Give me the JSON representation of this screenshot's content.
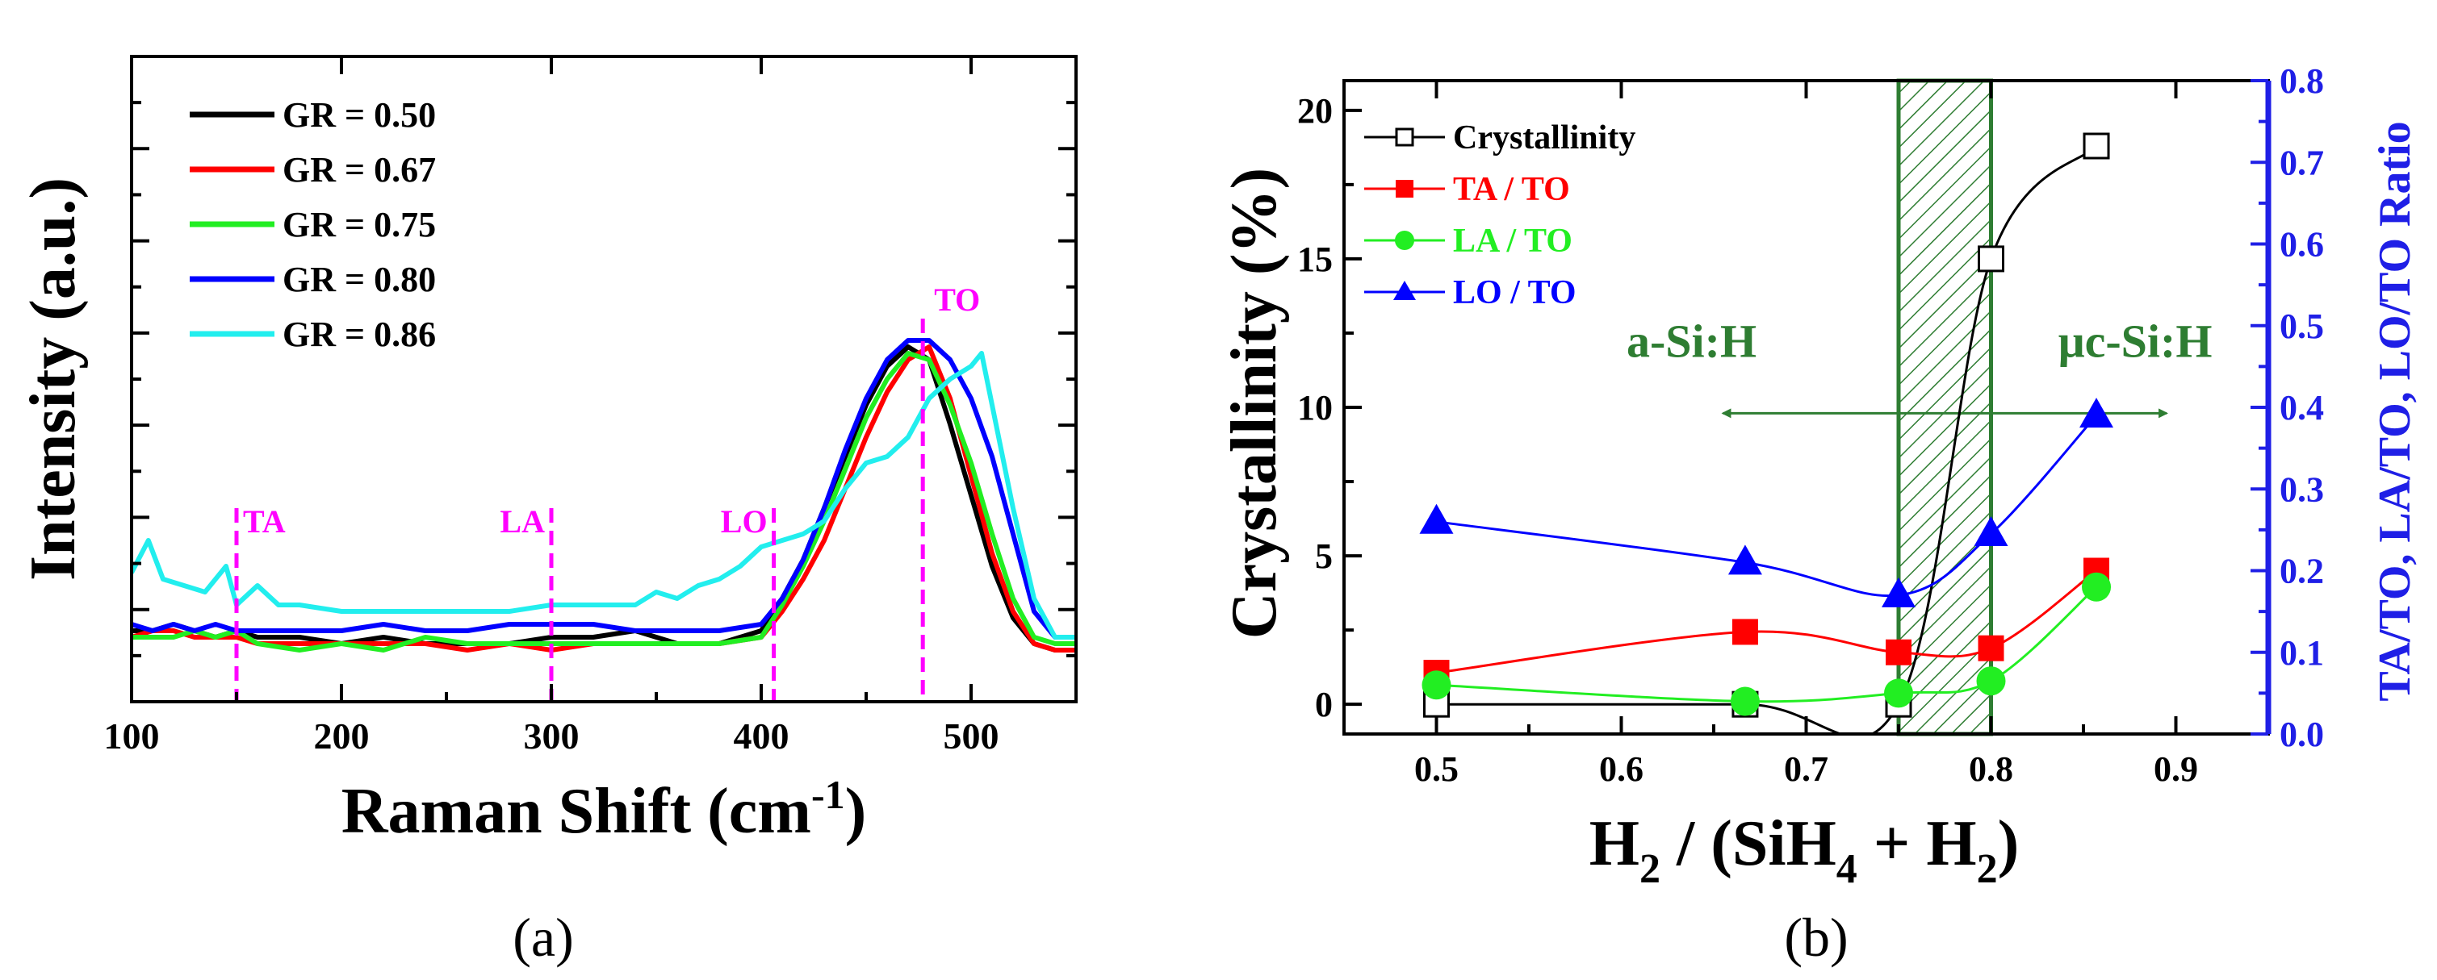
{
  "colors": {
    "black": "#000000",
    "red": "#ff0000",
    "green": "#22ee22",
    "blue": "#0000ff",
    "cyan": "#22eeee",
    "magenta": "#ff00ff",
    "hatch": "#2e7d32",
    "annotation_green": "#2e7d32",
    "right_axis_blue": "#1f1fe6"
  },
  "captions": {
    "a": "(a)",
    "b": "(b)"
  },
  "chart_data": [
    {
      "id": "a",
      "type": "line",
      "xlabel": "Raman Shift (cm",
      "xlabel_sup": "-1",
      "xlabel_end": ")",
      "ylabel": "Intensity (a.u.)",
      "xlim": [
        100,
        550
      ],
      "x_ticks": [
        100,
        200,
        300,
        400,
        500
      ],
      "ylim": [
        0,
        100
      ],
      "y_ticks_shown": false,
      "legend": {
        "placement": "top-left",
        "entries": [
          "GR = 0.50",
          "GR = 0.67",
          "GR = 0.75",
          "GR = 0.80",
          "GR = 0.86"
        ]
      },
      "series": [
        {
          "name": "GR = 0.50",
          "color": "#000000",
          "points": [
            [
              100,
              11
            ],
            [
              110,
              11
            ],
            [
              120,
              12
            ],
            [
              130,
              11
            ],
            [
              140,
              10
            ],
            [
              150,
              11
            ],
            [
              160,
              10
            ],
            [
              180,
              10
            ],
            [
              200,
              9
            ],
            [
              220,
              10
            ],
            [
              240,
              9
            ],
            [
              260,
              9
            ],
            [
              280,
              9
            ],
            [
              300,
              10
            ],
            [
              320,
              10
            ],
            [
              340,
              11
            ],
            [
              360,
              9
            ],
            [
              380,
              9
            ],
            [
              400,
              11
            ],
            [
              410,
              16
            ],
            [
              420,
              22
            ],
            [
              430,
              30
            ],
            [
              440,
              38
            ],
            [
              450,
              46
            ],
            [
              460,
              52
            ],
            [
              470,
              55
            ],
            [
              480,
              53
            ],
            [
              490,
              43
            ],
            [
              500,
              32
            ],
            [
              510,
              21
            ],
            [
              520,
              13
            ],
            [
              530,
              9
            ],
            [
              540,
              8
            ],
            [
              550,
              8
            ]
          ]
        },
        {
          "name": "GR = 0.67",
          "color": "#ff0000",
          "points": [
            [
              100,
              10
            ],
            [
              110,
              11
            ],
            [
              120,
              11
            ],
            [
              130,
              10
            ],
            [
              140,
              10
            ],
            [
              150,
              10
            ],
            [
              160,
              9
            ],
            [
              180,
              9
            ],
            [
              200,
              9
            ],
            [
              220,
              9
            ],
            [
              240,
              9
            ],
            [
              260,
              8
            ],
            [
              280,
              9
            ],
            [
              300,
              8
            ],
            [
              320,
              9
            ],
            [
              340,
              9
            ],
            [
              360,
              9
            ],
            [
              380,
              9
            ],
            [
              400,
              10
            ],
            [
              410,
              14
            ],
            [
              420,
              19
            ],
            [
              430,
              25
            ],
            [
              440,
              33
            ],
            [
              450,
              41
            ],
            [
              460,
              48
            ],
            [
              470,
              53
            ],
            [
              480,
              55
            ],
            [
              490,
              47
            ],
            [
              500,
              35
            ],
            [
              510,
              23
            ],
            [
              520,
              14
            ],
            [
              530,
              9
            ],
            [
              540,
              8
            ],
            [
              550,
              8
            ]
          ]
        },
        {
          "name": "GR = 0.75",
          "color": "#22ee22",
          "points": [
            [
              100,
              10
            ],
            [
              110,
              10
            ],
            [
              120,
              10
            ],
            [
              130,
              11
            ],
            [
              140,
              10
            ],
            [
              150,
              11
            ],
            [
              160,
              9
            ],
            [
              180,
              8
            ],
            [
              200,
              9
            ],
            [
              220,
              8
            ],
            [
              240,
              10
            ],
            [
              260,
              9
            ],
            [
              280,
              9
            ],
            [
              300,
              9
            ],
            [
              320,
              9
            ],
            [
              340,
              9
            ],
            [
              360,
              9
            ],
            [
              380,
              9
            ],
            [
              400,
              10
            ],
            [
              410,
              15
            ],
            [
              420,
              21
            ],
            [
              430,
              28
            ],
            [
              440,
              36
            ],
            [
              450,
              44
            ],
            [
              460,
              50
            ],
            [
              470,
              54
            ],
            [
              480,
              53
            ],
            [
              490,
              46
            ],
            [
              500,
              37
            ],
            [
              510,
              26
            ],
            [
              520,
              16
            ],
            [
              530,
              10
            ],
            [
              540,
              9
            ],
            [
              550,
              9
            ]
          ]
        },
        {
          "name": "GR = 0.80",
          "color": "#0000ff",
          "points": [
            [
              100,
              12
            ],
            [
              110,
              11
            ],
            [
              120,
              12
            ],
            [
              130,
              11
            ],
            [
              140,
              12
            ],
            [
              150,
              11
            ],
            [
              160,
              11
            ],
            [
              180,
              11
            ],
            [
              200,
              11
            ],
            [
              220,
              12
            ],
            [
              240,
              11
            ],
            [
              260,
              11
            ],
            [
              280,
              12
            ],
            [
              300,
              12
            ],
            [
              320,
              12
            ],
            [
              340,
              11
            ],
            [
              360,
              11
            ],
            [
              380,
              11
            ],
            [
              400,
              12
            ],
            [
              410,
              16
            ],
            [
              420,
              22
            ],
            [
              430,
              30
            ],
            [
              440,
              39
            ],
            [
              450,
              47
            ],
            [
              460,
              53
            ],
            [
              470,
              56
            ],
            [
              480,
              56
            ],
            [
              490,
              53
            ],
            [
              500,
              47
            ],
            [
              510,
              38
            ],
            [
              520,
              26
            ],
            [
              530,
              14
            ],
            [
              540,
              10
            ],
            [
              550,
              10
            ]
          ]
        },
        {
          "name": "GR = 0.86",
          "color": "#22eeee",
          "points": [
            [
              100,
              20
            ],
            [
              108,
              25
            ],
            [
              115,
              19
            ],
            [
              125,
              18
            ],
            [
              135,
              17
            ],
            [
              145,
              21
            ],
            [
              150,
              15
            ],
            [
              160,
              18
            ],
            [
              170,
              15
            ],
            [
              180,
              15
            ],
            [
              200,
              14
            ],
            [
              220,
              14
            ],
            [
              240,
              14
            ],
            [
              260,
              14
            ],
            [
              280,
              14
            ],
            [
              300,
              15
            ],
            [
              320,
              15
            ],
            [
              340,
              15
            ],
            [
              350,
              17
            ],
            [
              360,
              16
            ],
            [
              370,
              18
            ],
            [
              380,
              19
            ],
            [
              390,
              21
            ],
            [
              400,
              24
            ],
            [
              410,
              25
            ],
            [
              420,
              26
            ],
            [
              430,
              28
            ],
            [
              440,
              33
            ],
            [
              450,
              37
            ],
            [
              460,
              38
            ],
            [
              470,
              41
            ],
            [
              480,
              47
            ],
            [
              490,
              50
            ],
            [
              500,
              52
            ],
            [
              505,
              54
            ],
            [
              510,
              46
            ],
            [
              520,
              30
            ],
            [
              530,
              16
            ],
            [
              540,
              10
            ],
            [
              550,
              10
            ]
          ]
        }
      ],
      "reference_lines": [
        {
          "label": "TA",
          "x": 150
        },
        {
          "label": "LA",
          "x": 300
        },
        {
          "label": "LO",
          "x": 406
        },
        {
          "label": "TO",
          "x": 477
        }
      ]
    },
    {
      "id": "b",
      "type": "line",
      "xlabel": "H2 / (SiH4 + H2)",
      "xlabel_parts": [
        "H",
        "2",
        " / (SiH",
        "4",
        " + H",
        "2",
        ")"
      ],
      "ylabel": "Crystallinity (%)",
      "y2label": "TA/TO, LA/TO, LO/TO Ratio",
      "xlim": [
        0.45,
        0.95
      ],
      "x_ticks": [
        0.5,
        0.6,
        0.7,
        0.8,
        0.9
      ],
      "ylim": [
        -1,
        21
      ],
      "y_ticks": [
        0,
        5,
        10,
        15,
        20
      ],
      "y2lim": [
        0.0,
        0.8
      ],
      "y2_ticks": [
        0.0,
        0.1,
        0.2,
        0.3,
        0.4,
        0.5,
        0.6,
        0.7,
        0.8
      ],
      "legend": {
        "placement": "top-left",
        "entries": [
          "Crystallinity",
          "TA / TO",
          "LA / TO",
          "LO / TO"
        ]
      },
      "series": [
        {
          "name": "Crystallinity",
          "axis": "left",
          "color": "#000000",
          "marker": "open-square",
          "x": [
            0.5,
            0.667,
            0.75,
            0.8,
            0.857
          ],
          "y": [
            0,
            0,
            0,
            15,
            18.8
          ]
        },
        {
          "name": "TA / TO",
          "axis": "right",
          "color": "#ff0000",
          "marker": "filled-square",
          "x": [
            0.5,
            0.667,
            0.75,
            0.8,
            0.857
          ],
          "y": [
            0.075,
            0.125,
            0.1,
            0.105,
            0.2
          ]
        },
        {
          "name": "LA / TO",
          "axis": "right",
          "color": "#22ee22",
          "marker": "filled-circle",
          "x": [
            0.5,
            0.667,
            0.75,
            0.8,
            0.857
          ],
          "y": [
            0.06,
            0.04,
            0.05,
            0.065,
            0.18
          ]
        },
        {
          "name": "LO / TO",
          "axis": "right",
          "color": "#0000ff",
          "marker": "filled-triangle",
          "x": [
            0.5,
            0.667,
            0.75,
            0.8,
            0.857
          ],
          "y": [
            0.26,
            0.21,
            0.17,
            0.245,
            0.39
          ]
        }
      ],
      "shaded_region": {
        "x0": 0.75,
        "x1": 0.8,
        "pattern": "hatched"
      },
      "annotations": [
        {
          "text": "a-Si:H",
          "direction": "left"
        },
        {
          "text": "μc-Si:H",
          "direction": "right"
        }
      ]
    }
  ]
}
